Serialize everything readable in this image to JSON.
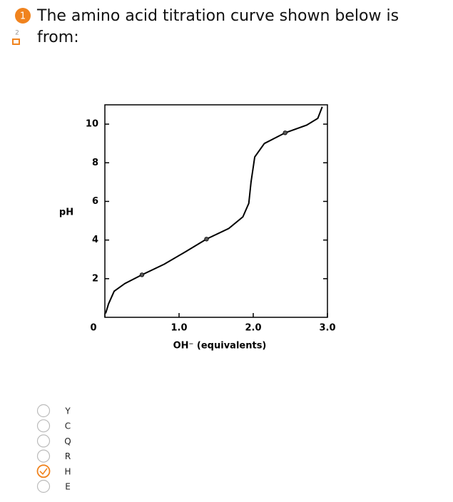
{
  "question": {
    "number": "1",
    "sub_number": "2",
    "text": "The amino acid titration curve shown below is from:"
  },
  "chart_data": {
    "type": "line",
    "ylabel": "pH",
    "xlabel": "OH⁻  (equivalents)",
    "xlim": [
      0,
      3
    ],
    "ylim": [
      0,
      11
    ],
    "xticks": [
      0,
      {
        "value": 1,
        "label": "1.0"
      },
      {
        "value": 2,
        "label": "2.0"
      },
      {
        "value": 3,
        "label": "3.0"
      }
    ],
    "yticks": [
      2,
      4,
      6,
      8,
      10
    ],
    "series": [
      {
        "color": "#000000",
        "x": [
          0.01,
          0.05,
          0.125,
          0.27,
          0.5,
          0.8,
          1.09,
          1.37,
          1.67,
          1.86,
          1.94,
          1.97,
          2.02,
          2.15,
          2.43,
          2.72,
          2.87,
          2.93
        ],
        "values": [
          0.2,
          0.7,
          1.35,
          1.75,
          2.2,
          2.75,
          3.4,
          4.05,
          4.6,
          5.2,
          5.9,
          7.0,
          8.3,
          9.0,
          9.55,
          9.95,
          10.3,
          10.9
        ]
      }
    ],
    "points": {
      "color": "#555555",
      "x": [
        0.5,
        1.37,
        2.43
      ],
      "values": [
        2.2,
        4.05,
        9.55
      ]
    }
  },
  "options": {
    "items": [
      "Y",
      "C",
      "Q",
      "R",
      "H",
      "E"
    ],
    "selected": 4
  }
}
